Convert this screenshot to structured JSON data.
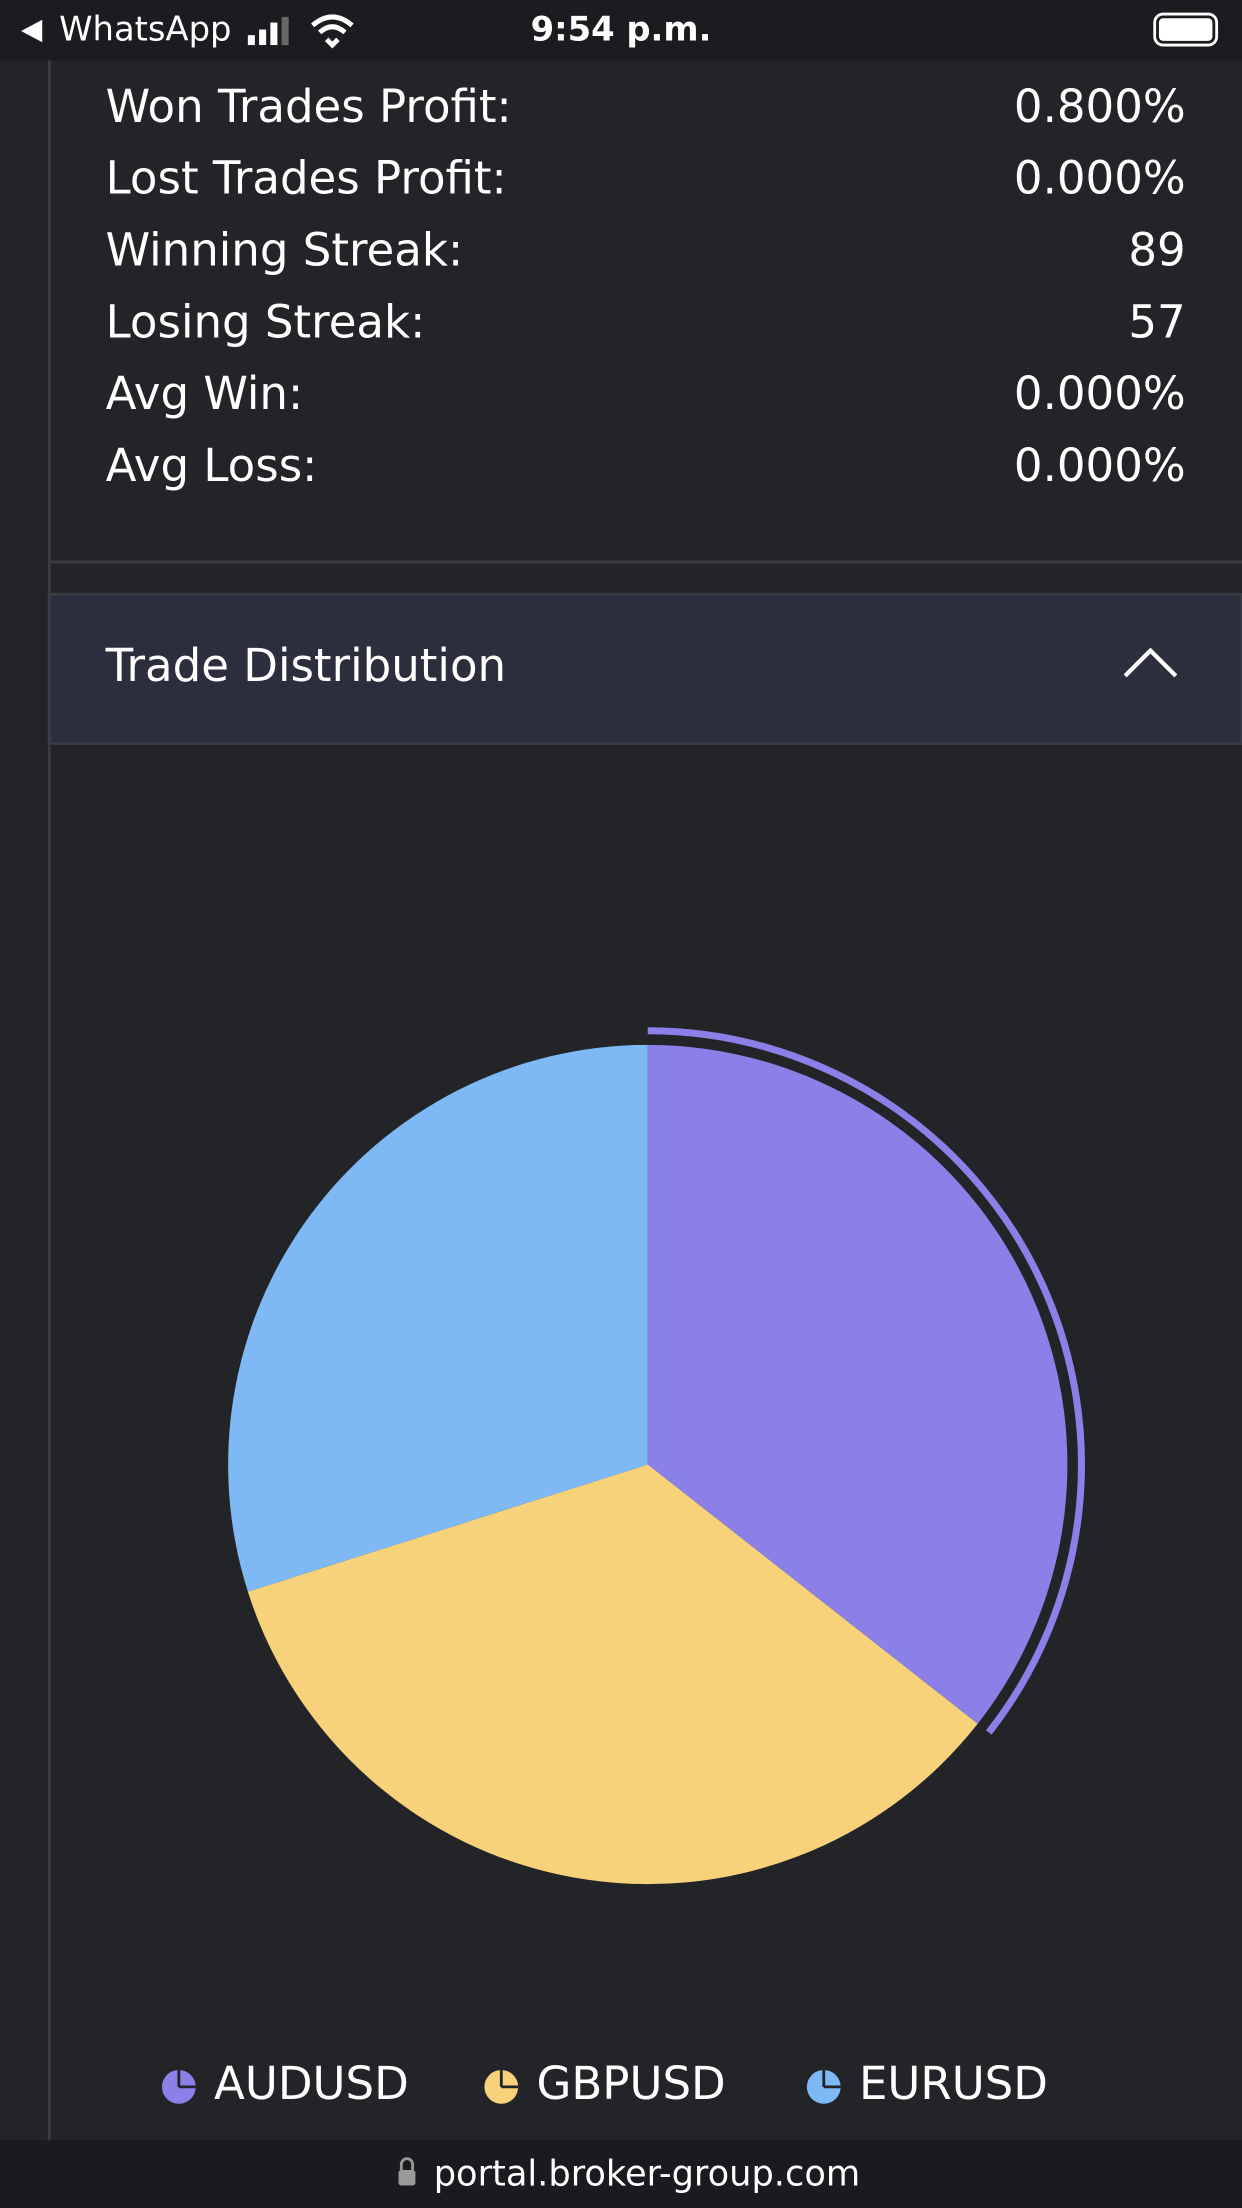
{
  "status_bar": {
    "back_app": "WhatsApp",
    "time": "9:54 p.m."
  },
  "stats": [
    {
      "label": "Won Trades Profit:",
      "value": "0.800%"
    },
    {
      "label": "Lost Trades Profit:",
      "value": "0.000%"
    },
    {
      "label": "Winning Streak:",
      "value": "89"
    },
    {
      "label": "Losing Streak:",
      "value": "57"
    },
    {
      "label": "Avg Win:",
      "value": "0.000%"
    },
    {
      "label": "Avg Loss:",
      "value": "0.000%"
    }
  ],
  "chart_data": {
    "type": "pie",
    "title": "Trade Distribution",
    "categories": [
      "AUDUSD",
      "GBPUSD",
      "EURUSD"
    ],
    "values": [
      35.6,
      34.5,
      29.9
    ],
    "colors": [
      "#8c80e8",
      "#f7d27a",
      "#7fb9f5"
    ]
  },
  "url": "portal.broker-group.com"
}
